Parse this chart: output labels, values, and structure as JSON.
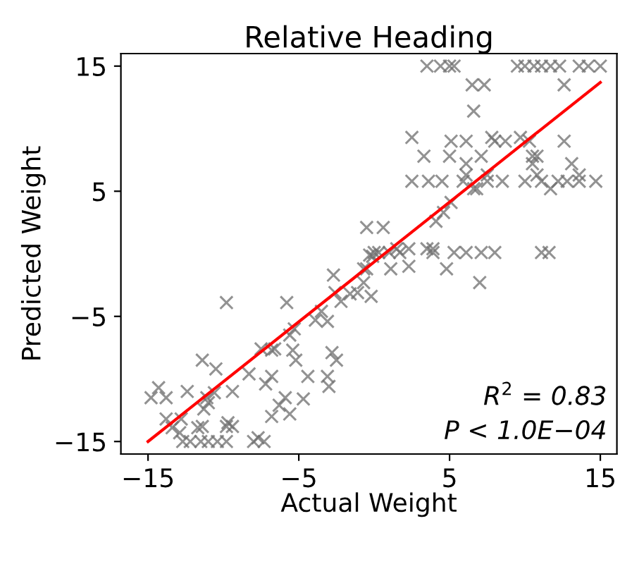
{
  "chart_data": {
    "type": "scatter",
    "title": "Relative Heading",
    "xlabel": "Actual Weight",
    "ylabel": "Predicted Weight",
    "xlim": [
      -16.8,
      16.1
    ],
    "ylim": [
      -16,
      16
    ],
    "xticks": [
      -15,
      -5,
      5,
      15
    ],
    "yticks": [
      -15,
      -5,
      5,
      15
    ],
    "grid": false,
    "annotations": [
      "R$^{2}$ = 0.83",
      "P < 1.0E−04"
    ],
    "series": [
      {
        "marker": "cross",
        "color": "#6e6e6e",
        "x": [
          3.5,
          4.4,
          5.0,
          5.3,
          9.5,
          10,
          10.6,
          11.1,
          11.7,
          12.3,
          13.6,
          14.2,
          15,
          6.5,
          7.3,
          12.6,
          6.6,
          2.5,
          7.8,
          9.7,
          5.1,
          6.1,
          8,
          8.7,
          12.6,
          10.3,
          3.3,
          5,
          7.1,
          10.5,
          10.8,
          6.1,
          10.5,
          13.1,
          6.1,
          7.5,
          10.8,
          13.6,
          2.5,
          3.6,
          4.5,
          5.9,
          7.5,
          8.5,
          10,
          11.1,
          12.2,
          12.8,
          13.6,
          14.7,
          6.6,
          6.8,
          11.7,
          5.1,
          4.6,
          4.1,
          0,
          0.3,
          1,
          1.7,
          3.9,
          5.3,
          6.1,
          7.1,
          8,
          11.1,
          11.6,
          1.5,
          2.3,
          3.5,
          3.9,
          1.1,
          4.8,
          2.3,
          -0.7,
          7,
          -0.2,
          -0.5,
          0.6,
          -0.1,
          -0.5,
          -2.7,
          -0.3,
          -0.7,
          -2.6,
          -2.2,
          -1.6,
          -1.1,
          -3.5,
          -3.9,
          -3.1,
          -5.6,
          -5.3,
          -7.5,
          -6.8,
          -6.6,
          -5.4,
          -5.2,
          -2.8,
          -2.5,
          -11.4,
          -10.5,
          -8.3,
          -6.8,
          -7.2,
          -4.4,
          -3.1,
          -3,
          -14.8,
          -14.3,
          -13.8,
          -12.4,
          -11.1,
          -10.6,
          -9.4,
          -5.9,
          -6.3,
          -5.6,
          -4.7,
          -6.8,
          -11,
          -11.3,
          -13.8,
          -12.8,
          -13.4,
          -12.9,
          -11.7,
          -11.4,
          -9.8,
          -9.4,
          -9.7,
          -7.7,
          -9.8,
          -5.8,
          -12.7,
          -12.2,
          -11.5,
          -11,
          -10.4,
          -9.8,
          -8,
          -7.3
        ],
        "values": [
          15,
          15,
          15,
          15,
          15,
          15,
          15,
          15,
          15,
          15,
          15,
          15,
          15,
          13.5,
          13.5,
          13.5,
          11.4,
          9.3,
          9.3,
          9.3,
          9,
          9,
          9,
          9,
          9,
          9,
          7.8,
          7.8,
          7.8,
          7.8,
          7.8,
          7.2,
          7.2,
          7.2,
          6.3,
          6.3,
          6.3,
          6.3,
          5.8,
          5.8,
          5.8,
          5.8,
          5.8,
          5.8,
          5.8,
          5.8,
          5.8,
          5.8,
          5.8,
          5.8,
          5.2,
          5.2,
          5.2,
          4.1,
          3.3,
          2.6,
          0.1,
          0.1,
          0.1,
          0.1,
          0.1,
          0.1,
          0.1,
          0.1,
          0.1,
          0.1,
          0.1,
          0.4,
          0.4,
          0.4,
          0.4,
          -1.2,
          -1.2,
          -1,
          -2.3,
          -2.3,
          -3.4,
          2.1,
          2.1,
          -0.2,
          -1.2,
          -1.7,
          -0.1,
          -1.2,
          -3.1,
          -3.8,
          -3.2,
          -3.1,
          -4.6,
          -5.3,
          -5.4,
          -6.5,
          -6,
          -7.6,
          -7.7,
          -7.6,
          -7.7,
          -8.5,
          -7.9,
          -8.5,
          -8.5,
          -9.2,
          -9.6,
          -9.8,
          -10.4,
          -9.8,
          -9.8,
          -10.6,
          -11.5,
          -10.7,
          -11.5,
          -11,
          -11.5,
          -11.1,
          -11,
          -11.5,
          -12.1,
          -12.8,
          -11.6,
          -13,
          -11.9,
          -12.4,
          -13.2,
          -13.2,
          -13.9,
          -14.3,
          -13.9,
          -13.8,
          -13.8,
          -13.8,
          -13.5,
          -14.7,
          -3.9,
          -3.9,
          -15,
          -15,
          -15,
          -15,
          -15,
          -15,
          -15,
          -15
        ]
      },
      {
        "type": "line",
        "color": "#ff0000",
        "x": [
          -15,
          15
        ],
        "values": [
          -15,
          13.7
        ]
      }
    ]
  }
}
